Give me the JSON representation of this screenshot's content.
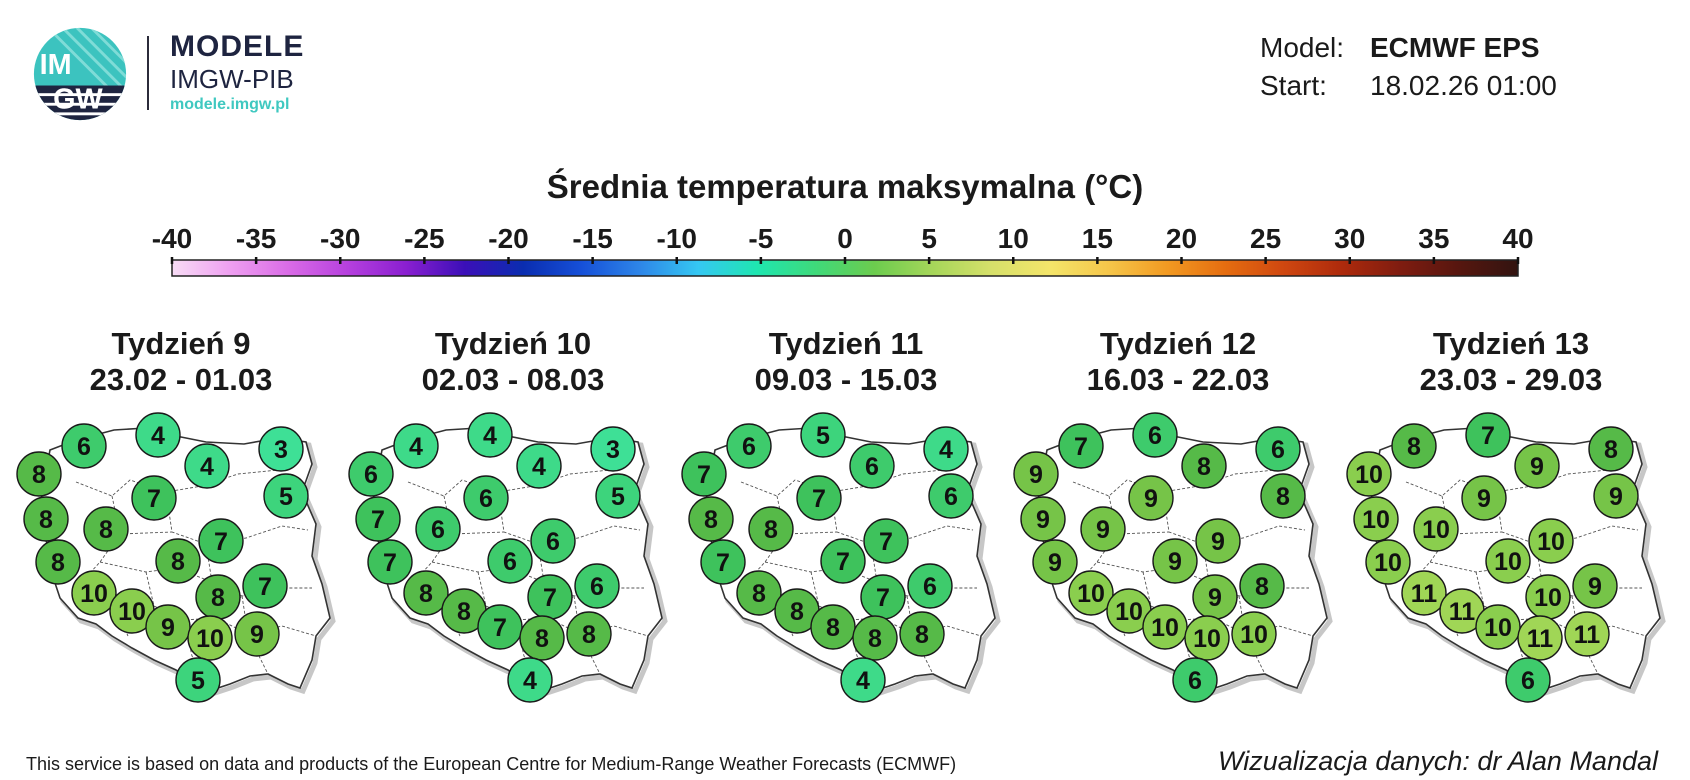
{
  "logo": {
    "badge_text_top": "IM",
    "badge_text_bottom": "GW",
    "line1": "MODELE",
    "line2": "IMGW-PIB",
    "url": "modele.imgw.pl"
  },
  "info": {
    "model_label": "Model:",
    "model_value": "ECMWF EPS",
    "start_label": "Start:",
    "start_value": "18.02.26 01:00"
  },
  "scale": {
    "title": "Średnia temperatura maksymalna (°C)",
    "ticks": [
      "-40",
      "-35",
      "-30",
      "-25",
      "-20",
      "-15",
      "-10",
      "-5",
      "0",
      "5",
      "10",
      "15",
      "20",
      "25",
      "30",
      "35",
      "40"
    ],
    "colors": [
      "#f7dcf5",
      "#ee9ff0",
      "#d96be6",
      "#b640de",
      "#8a1fd0",
      "#3b0fb8",
      "#0a2db0",
      "#1650d8",
      "#2e86e8",
      "#35c8f2",
      "#1fe6b0",
      "#3fd97a",
      "#6ccc4e",
      "#a6d65a",
      "#d6e06a",
      "#f4e56a",
      "#f5c64a",
      "#f29a22",
      "#e56d10",
      "#cf4710",
      "#ad2a0c",
      "#7e1c10",
      "#56160f",
      "#321410"
    ]
  },
  "weeks": [
    {
      "title": "Tydzień 9",
      "dates": "23.02 - 01.03",
      "values": [
        "8",
        "6",
        "4",
        "4",
        "3",
        "8",
        "8",
        "7",
        "5",
        "8",
        "8",
        "7",
        "10",
        "7",
        "10",
        "8",
        "9",
        "10",
        "9",
        "5"
      ]
    },
    {
      "title": "Tydzień 10",
      "dates": "02.03 - 08.03",
      "values": [
        "6",
        "4",
        "4",
        "4",
        "3",
        "7",
        "6",
        "6",
        "5",
        "7",
        "6",
        "6",
        "8",
        "6",
        "8",
        "7",
        "7",
        "8",
        "8",
        "4"
      ]
    },
    {
      "title": "Tydzień 11",
      "dates": "09.03 - 15.03",
      "values": [
        "7",
        "6",
        "5",
        "6",
        "4",
        "8",
        "8",
        "7",
        "6",
        "7",
        "7",
        "7",
        "8",
        "6",
        "8",
        "7",
        "8",
        "8",
        "8",
        "4"
      ]
    },
    {
      "title": "Tydzień 12",
      "dates": "16.03 - 22.03",
      "values": [
        "9",
        "7",
        "6",
        "8",
        "6",
        "9",
        "9",
        "9",
        "8",
        "9",
        "9",
        "9",
        "10",
        "8",
        "10",
        "9",
        "10",
        "10",
        "10",
        "6"
      ]
    },
    {
      "title": "Tydzień 13",
      "dates": "23.03 - 29.03",
      "values": [
        "10",
        "8",
        "7",
        "9",
        "8",
        "10",
        "10",
        "9",
        "9",
        "10",
        "10",
        "10",
        "11",
        "9",
        "11",
        "10",
        "10",
        "11",
        "11",
        "6"
      ]
    }
  ],
  "footer": {
    "left": "This service is based on data and products of the European Centre for Medium-Range Weather Forecasts (ECMWF)",
    "right": "Wizualizacja danych: dr Alan Mandal"
  }
}
